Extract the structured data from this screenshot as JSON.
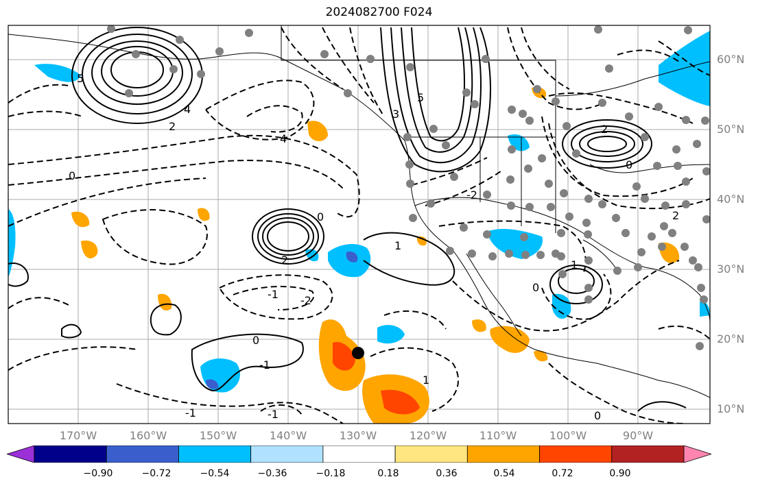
{
  "title": "2024082700 F024",
  "lat_labels": [
    "60°N",
    "50°N",
    "40°N",
    "30°N",
    "20°N",
    "10°N"
  ],
  "lon_labels": [
    "170°W",
    "160°W",
    "150°W",
    "140°W",
    "130°W",
    "120°W",
    "110°W",
    "100°W",
    "90°W"
  ],
  "contour_labels": {
    "alaska_low": [
      "5",
      "4",
      "2"
    ],
    "gulf_low": [
      "4"
    ],
    "west_us_high": [
      "3",
      "5"
    ],
    "east_pacific_low": [
      "2",
      "0"
    ],
    "hudson_high": [
      "2",
      "0"
    ],
    "south_pacific": [
      "1",
      "-1",
      "-2",
      "-1"
    ],
    "tropics": [
      "0",
      "-1",
      "-1",
      "0",
      "1"
    ],
    "gulf_mexico": [
      "1",
      "0",
      "0"
    ],
    "east_us": [
      "2",
      "-2"
    ]
  },
  "colorbar": {
    "ticks": [
      "−0.90",
      "−0.72",
      "−0.54",
      "−0.36",
      "−0.18",
      "0.18",
      "0.36",
      "0.54",
      "0.72",
      "0.90"
    ],
    "colors": [
      "#9b30d9",
      "#00008b",
      "#3a5fcd",
      "#00bfff",
      "#b0e2ff",
      "#ffffff",
      "#ffe680",
      "#ffa500",
      "#ff4500",
      "#b22222",
      "#ff85b0"
    ]
  }
}
